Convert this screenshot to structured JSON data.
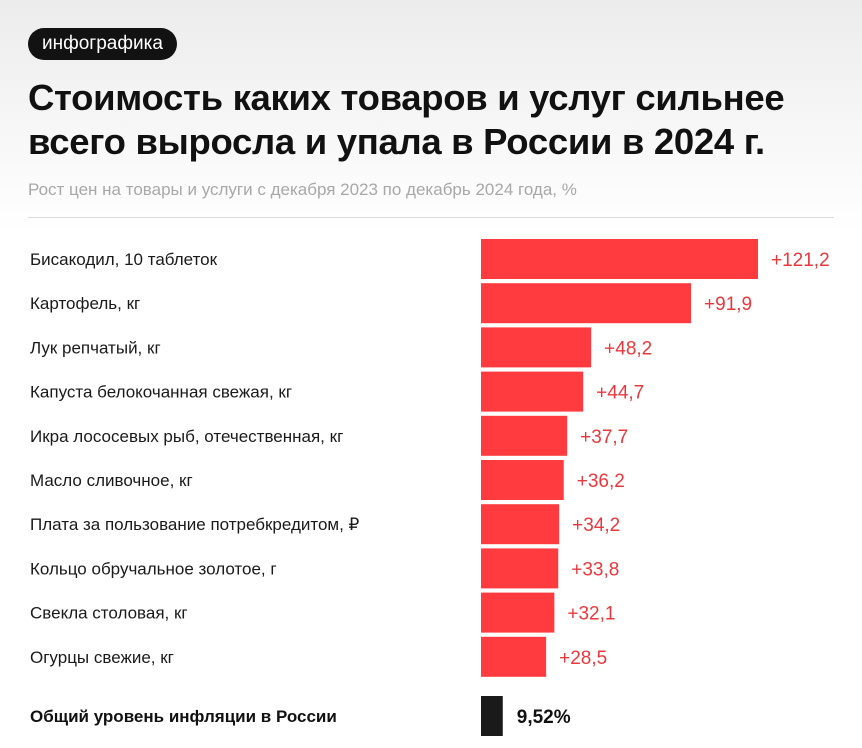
{
  "badge": "инфографика",
  "title": "Стоимость каких товаров и услуг сильнее всего выросла и упала в России в 2024 г.",
  "subtitle": "Рост цен на товары и услуги с декабря 2023 по декабрь 2024 года, %",
  "colors": {
    "bar": "#ff3b3f",
    "value_text": "#e8383d",
    "total_bar": "#1a1a1a"
  },
  "chart_data": {
    "type": "bar",
    "orientation": "horizontal",
    "categories": [
      "Бисакодил, 10 таблеток",
      "Картофель, кг",
      "Лук репчатый, кг",
      "Капуста белокочанная свежая, кг",
      "Икра лососевых рыб, отечественная, кг",
      "Масло сливочное, кг",
      "Плата за пользование потребкредитом, ₽",
      "Кольцо обручальное золотое, г",
      "Свекла столовая, кг",
      "Огурцы свежие, кг"
    ],
    "values": [
      121.2,
      91.9,
      48.2,
      44.7,
      37.7,
      36.2,
      34.2,
      33.8,
      32.1,
      28.5
    ],
    "value_labels": [
      "+121,2",
      "+91,9",
      "+48,2",
      "+44,7",
      "+37,7",
      "+36,2",
      "+34,2",
      "+33,8",
      "+32,1",
      "+28,5"
    ],
    "total": {
      "label": "Общий уровень инфляции в России",
      "value": 9.52,
      "value_label": "9,52%"
    }
  }
}
